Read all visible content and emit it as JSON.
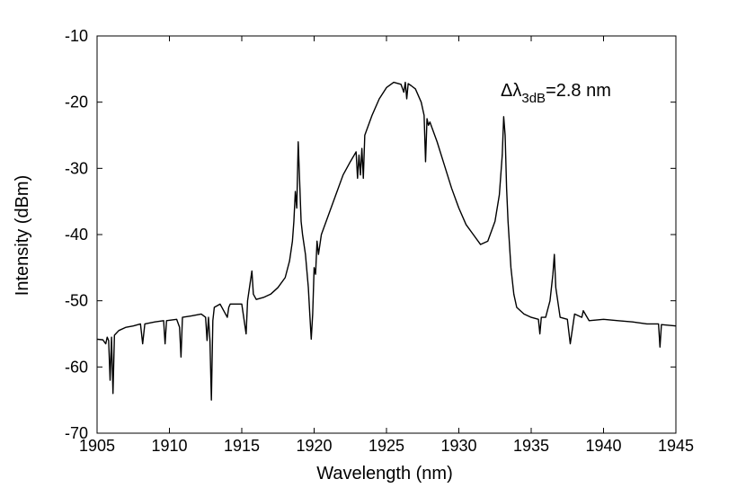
{
  "chart_data": {
    "type": "line",
    "title": "",
    "xlabel": "Wavelength (nm)",
    "ylabel": "Intensity (dBm)",
    "xlim": [
      1905,
      1945
    ],
    "ylim": [
      -70,
      -10
    ],
    "xticks": [
      1905,
      1910,
      1915,
      1920,
      1925,
      1930,
      1935,
      1940,
      1945
    ],
    "yticks": [
      -70,
      -60,
      -50,
      -40,
      -30,
      -20,
      -10
    ],
    "xtick_labels": [
      "1905",
      "1910",
      "1915",
      "1920",
      "1925",
      "1930",
      "1935",
      "1940",
      "1945"
    ],
    "ytick_labels": [
      "-70",
      "-60",
      "-50",
      "-40",
      "-30",
      "-20",
      "-10"
    ],
    "grid": false,
    "line_color": "#000000",
    "annotation": {
      "prefix": "Δλ",
      "subscript": "3dB",
      "suffix": "=2.8 nm"
    },
    "series": [
      {
        "x": [
          1905.0,
          1905.4,
          1905.6,
          1905.7,
          1905.8,
          1905.9,
          1906.0,
          1906.1,
          1906.2,
          1906.5,
          1907.0,
          1907.5,
          1908.0,
          1908.15,
          1908.3,
          1909.0,
          1909.6,
          1909.7,
          1909.8,
          1910.5,
          1910.7,
          1910.8,
          1910.9,
          1911.5,
          1912.2,
          1912.5,
          1912.6,
          1912.7,
          1912.8,
          1912.9,
          1913.0,
          1913.1,
          1913.5,
          1914.0,
          1914.1,
          1914.2,
          1915.0,
          1915.3,
          1915.4,
          1915.5,
          1915.7,
          1915.8,
          1916.0,
          1916.5,
          1917.0,
          1917.5,
          1918.0,
          1918.3,
          1918.5,
          1918.6,
          1918.7,
          1918.8,
          1918.9,
          1919.0,
          1919.1,
          1919.2,
          1919.4,
          1919.6,
          1919.7,
          1919.8,
          1919.9,
          1920.0,
          1920.1,
          1920.2,
          1920.3,
          1920.5,
          1921.0,
          1921.5,
          1922.0,
          1922.5,
          1922.9,
          1923.0,
          1923.1,
          1923.2,
          1923.3,
          1923.4,
          1923.5,
          1924.0,
          1924.5,
          1925.0,
          1925.5,
          1926.0,
          1926.2,
          1926.3,
          1926.4,
          1926.5,
          1926.7,
          1927.0,
          1927.4,
          1927.6,
          1927.7,
          1927.8,
          1927.9,
          1928.0,
          1928.5,
          1929.0,
          1929.5,
          1930.0,
          1930.5,
          1931.0,
          1931.5,
          1932.0,
          1932.5,
          1932.8,
          1933.0,
          1933.1,
          1933.2,
          1933.3,
          1933.4,
          1933.6,
          1933.8,
          1934.0,
          1934.5,
          1935.0,
          1935.5,
          1935.6,
          1935.7,
          1936.0,
          1936.3,
          1936.5,
          1936.6,
          1936.7,
          1937.0,
          1937.5,
          1937.7,
          1938.0,
          1938.5,
          1938.6,
          1939.0,
          1940.0,
          1941.0,
          1942.0,
          1943.0,
          1943.8,
          1943.9,
          1944.0,
          1944.5,
          1945.0
        ],
        "y": [
          -55.8,
          -55.9,
          -56.5,
          -55.5,
          -56.0,
          -62.0,
          -55.5,
          -64.0,
          -55.2,
          -54.5,
          -54.0,
          -53.8,
          -53.5,
          -56.5,
          -53.5,
          -53.2,
          -53.0,
          -56.5,
          -53.0,
          -52.8,
          -54.0,
          -58.5,
          -52.5,
          -52.3,
          -52.0,
          -52.5,
          -56.0,
          -52.5,
          -56.0,
          -65.0,
          -53.0,
          -51.0,
          -50.5,
          -52.5,
          -51.0,
          -50.5,
          -50.5,
          -55.0,
          -50.0,
          -48.5,
          -45.5,
          -49.0,
          -49.8,
          -49.5,
          -49.0,
          -48.0,
          -46.5,
          -44.0,
          -41.0,
          -38.0,
          -33.5,
          -36.0,
          -26.0,
          -32.0,
          -38.0,
          -40.0,
          -43.0,
          -48.0,
          -52.0,
          -55.8,
          -52.0,
          -45.0,
          -46.0,
          -41.0,
          -43.0,
          -40.0,
          -37.0,
          -34.0,
          -31.0,
          -29.0,
          -27.5,
          -31.5,
          -28.0,
          -31.0,
          -27.0,
          -31.5,
          -25.0,
          -22.0,
          -19.5,
          -17.8,
          -17.0,
          -17.3,
          -18.5,
          -17.0,
          -19.5,
          -17.2,
          -17.5,
          -18.0,
          -20.0,
          -22.0,
          -29.0,
          -22.5,
          -23.5,
          -23.0,
          -26.0,
          -29.5,
          -33.0,
          -36.0,
          -38.5,
          -40.0,
          -41.5,
          -41.0,
          -38.0,
          -34.0,
          -28.0,
          -22.2,
          -25.0,
          -33.0,
          -38.0,
          -45.0,
          -49.0,
          -51.0,
          -52.0,
          -52.5,
          -52.8,
          -55.0,
          -52.5,
          -52.5,
          -50.0,
          -46.0,
          -43.0,
          -48.0,
          -52.5,
          -52.8,
          -56.5,
          -52.0,
          -52.5,
          -51.5,
          -53.0,
          -52.8,
          -53.0,
          -53.2,
          -53.5,
          -53.5,
          -57.0,
          -53.6,
          -53.7,
          -53.8
        ]
      }
    ]
  }
}
